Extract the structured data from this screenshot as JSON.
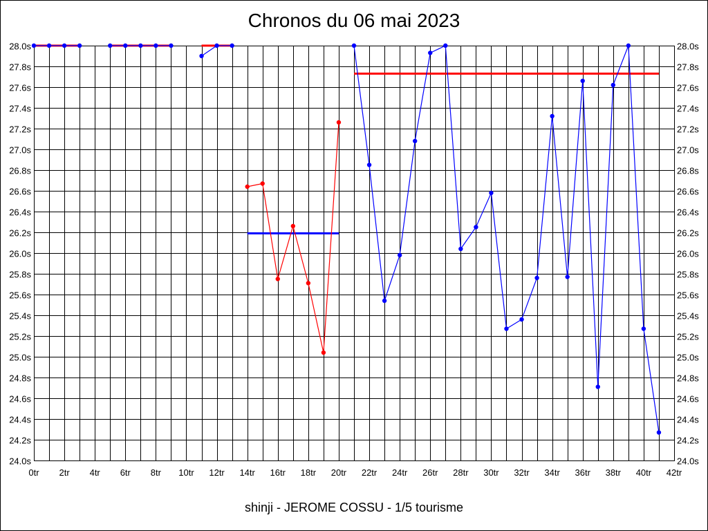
{
  "title": "Chronos du 06 mai 2023",
  "subtitle": "shinji - JEROME COSSU - 1/5 tourisme",
  "colors": {
    "red": "#ff0000",
    "blue": "#0000ff",
    "grid": "#000000"
  },
  "chart_data": {
    "type": "line",
    "title": "Chronos du 06 mai 2023",
    "xlabel": "",
    "ylabel": "",
    "xlim": [
      0,
      42
    ],
    "ylim": [
      24.0,
      28.0
    ],
    "x_ticks": [
      "0tr",
      "2tr",
      "4tr",
      "6tr",
      "8tr",
      "10tr",
      "12tr",
      "14tr",
      "16tr",
      "18tr",
      "20tr",
      "22tr",
      "24tr",
      "26tr",
      "28tr",
      "30tr",
      "32tr",
      "34tr",
      "36tr",
      "38tr",
      "40tr",
      "42tr"
    ],
    "y_ticks": [
      "24.0s",
      "24.2s",
      "24.4s",
      "24.6s",
      "24.8s",
      "25.0s",
      "25.2s",
      "25.4s",
      "25.6s",
      "25.8s",
      "26.0s",
      "26.2s",
      "26.4s",
      "26.6s",
      "26.8s",
      "27.0s",
      "27.2s",
      "27.4s",
      "27.6s",
      "27.8s",
      "28.0s"
    ],
    "grid": true,
    "series": [
      {
        "color": "#0000ff",
        "x": [
          0,
          1,
          2,
          3
        ],
        "values": [
          28.0,
          28.0,
          28.0,
          28.0
        ]
      },
      {
        "color": "#0000ff",
        "x": [
          5,
          6,
          7,
          8,
          9
        ],
        "values": [
          28.0,
          28.0,
          28.0,
          28.0,
          28.0
        ]
      },
      {
        "color": "#0000ff",
        "x": [
          11,
          12,
          13
        ],
        "values": [
          27.9,
          28.0,
          28.0
        ]
      },
      {
        "color": "#ff0000",
        "x": [
          14,
          15,
          16,
          17,
          18,
          19,
          20
        ],
        "values": [
          26.64,
          26.67,
          25.75,
          26.26,
          25.71,
          25.04,
          27.26
        ]
      },
      {
        "color": "#0000ff",
        "x": [
          21,
          22,
          23,
          24,
          25,
          26,
          27,
          28,
          29,
          30,
          31,
          32,
          33,
          34,
          35,
          36,
          37,
          38,
          39,
          40,
          41
        ],
        "values": [
          28.0,
          26.85,
          25.54,
          25.98,
          27.08,
          27.93,
          28.0,
          26.04,
          26.25,
          26.58,
          25.27,
          25.36,
          25.76,
          27.32,
          25.77,
          27.66,
          24.71,
          27.62,
          28.0,
          25.27,
          24.27
        ]
      }
    ],
    "averages": [
      {
        "color": "#ff0000",
        "x": [
          0,
          3
        ],
        "value": 28.0
      },
      {
        "color": "#ff0000",
        "x": [
          5,
          9
        ],
        "value": 28.0
      },
      {
        "color": "#ff0000",
        "x": [
          11,
          13
        ],
        "value": 28.0
      },
      {
        "color": "#0000ff",
        "x": [
          14,
          20
        ],
        "value": 26.19
      },
      {
        "color": "#ff0000",
        "x": [
          21,
          41
        ],
        "value": 27.73
      }
    ]
  }
}
